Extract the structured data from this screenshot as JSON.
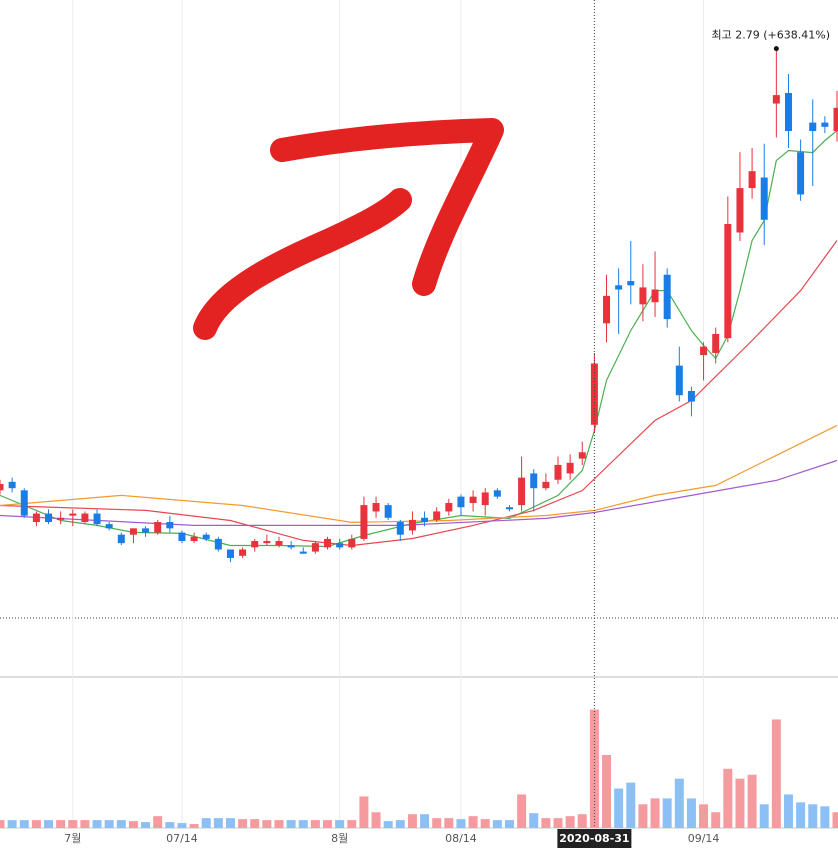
{
  "chart_data": {
    "type": "candlestick",
    "categories": [
      null,
      null,
      null,
      null,
      null,
      null,
      "7월",
      null,
      null,
      null,
      null,
      null,
      null,
      null,
      null,
      "07/14",
      null,
      null,
      null,
      null,
      null,
      null,
      null,
      null,
      null,
      null,
      null,
      null,
      "8월",
      null,
      null,
      null,
      null,
      null,
      null,
      null,
      null,
      null,
      "08/14",
      null,
      null,
      null,
      null,
      null,
      null,
      null,
      null,
      null,
      null,
      "2020-08-31",
      null,
      null,
      null,
      null,
      null,
      null,
      null,
      null,
      "09/14",
      null,
      null,
      null,
      null,
      null,
      null,
      null,
      null,
      null,
      null,
      null
    ],
    "open": [
      0.7,
      0.74,
      0.7,
      0.55,
      0.59,
      0.56,
      0.58,
      0.55,
      0.59,
      0.54,
      0.49,
      0.49,
      0.52,
      0.5,
      0.55,
      0.5,
      0.46,
      0.49,
      0.47,
      0.42,
      0.39,
      0.43,
      0.45,
      0.44,
      0.44,
      0.41,
      0.41,
      0.43,
      0.45,
      0.43,
      0.47,
      0.6,
      0.63,
      0.55,
      0.51,
      0.57,
      0.56,
      0.6,
      0.67,
      0.64,
      0.63,
      0.7,
      0.62,
      0.63,
      0.78,
      0.71,
      0.75,
      0.78,
      0.85,
      1.01,
      1.49,
      1.67,
      1.69,
      1.58,
      1.59,
      1.72,
      1.29,
      1.17,
      1.34,
      1.35,
      1.42,
      1.92,
      2.13,
      2.18,
      2.53,
      2.58,
      2.3,
      2.44,
      2.44,
      2.4
    ],
    "high": [
      0.75,
      0.76,
      0.71,
      0.6,
      0.61,
      0.6,
      0.61,
      0.6,
      0.61,
      0.55,
      0.5,
      0.52,
      0.53,
      0.56,
      0.58,
      0.51,
      0.5,
      0.5,
      0.48,
      0.42,
      0.43,
      0.47,
      0.49,
      0.48,
      0.46,
      0.43,
      0.46,
      0.48,
      0.47,
      0.49,
      0.67,
      0.67,
      0.64,
      0.56,
      0.6,
      0.6,
      0.62,
      0.66,
      0.68,
      0.7,
      0.71,
      0.71,
      0.63,
      0.86,
      0.8,
      0.78,
      0.86,
      0.87,
      0.93,
      1.35,
      1.72,
      1.75,
      1.88,
      1.77,
      1.83,
      1.75,
      1.38,
      1.19,
      1.4,
      1.47,
      2.09,
      2.3,
      2.32,
      2.34,
      2.79,
      2.67,
      2.36,
      2.55,
      2.47,
      2.59
    ],
    "low": [
      0.68,
      0.69,
      0.57,
      0.53,
      0.54,
      0.54,
      0.53,
      0.54,
      0.53,
      0.51,
      0.44,
      0.45,
      0.48,
      0.49,
      0.5,
      0.45,
      0.45,
      0.46,
      0.41,
      0.36,
      0.38,
      0.41,
      0.44,
      0.43,
      0.42,
      0.4,
      0.4,
      0.42,
      0.42,
      0.42,
      0.46,
      0.57,
      0.56,
      0.46,
      0.49,
      0.53,
      0.55,
      0.58,
      0.58,
      0.6,
      0.58,
      0.66,
      0.6,
      0.6,
      0.6,
      0.7,
      0.73,
      0.75,
      0.82,
      0.97,
      1.4,
      1.44,
      1.58,
      1.5,
      1.52,
      1.47,
      1.12,
      1.05,
      1.22,
      1.3,
      1.4,
      1.88,
      2.08,
      1.86,
      2.37,
      2.32,
      2.07,
      2.14,
      2.39,
      2.35
    ],
    "close": [
      0.73,
      0.71,
      0.58,
      0.59,
      0.55,
      0.57,
      0.59,
      0.59,
      0.54,
      0.52,
      0.45,
      0.52,
      0.5,
      0.55,
      0.52,
      0.46,
      0.48,
      0.47,
      0.42,
      0.38,
      0.42,
      0.46,
      0.46,
      0.46,
      0.43,
      0.4,
      0.45,
      0.47,
      0.43,
      0.47,
      0.63,
      0.64,
      0.57,
      0.49,
      0.56,
      0.55,
      0.6,
      0.64,
      0.62,
      0.67,
      0.69,
      0.67,
      0.61,
      0.76,
      0.71,
      0.74,
      0.82,
      0.83,
      0.88,
      1.3,
      1.62,
      1.65,
      1.67,
      1.66,
      1.65,
      1.51,
      1.15,
      1.12,
      1.38,
      1.44,
      1.96,
      2.13,
      2.21,
      1.98,
      2.57,
      2.4,
      2.1,
      2.4,
      2.42,
      2.51
    ],
    "ylim": [
      0.11,
      3.02
    ],
    "up_color": "#e8323c",
    "down_color": "#1a7de6",
    "overlays": [
      {
        "color": "#4caf50",
        "x": [
          0,
          2,
          5,
          8,
          11,
          15,
          19,
          23,
          27,
          30,
          34,
          38,
          42,
          46,
          48,
          49,
          50,
          52,
          54,
          55,
          57,
          58,
          59,
          60,
          61,
          62,
          63,
          64,
          65,
          67,
          68,
          69
        ],
        "values": [
          0.676,
          0.628,
          0.557,
          0.534,
          0.501,
          0.496,
          0.439,
          0.439,
          0.434,
          0.486,
          0.543,
          0.581,
          0.567,
          0.676,
          0.794,
          0.983,
          1.22,
          1.456,
          1.645,
          1.645,
          1.456,
          1.385,
          1.324,
          1.432,
          1.645,
          1.882,
          1.976,
          2.26,
          2.308,
          2.298,
          2.355,
          2.402
        ]
      },
      {
        "color": "#e8474f",
        "x": [
          0,
          12,
          19,
          25,
          29,
          34,
          39,
          44,
          48,
          54,
          57,
          62,
          66,
          69
        ],
        "values": [
          0.628,
          0.605,
          0.557,
          0.463,
          0.439,
          0.472,
          0.534,
          0.605,
          0.699,
          1.031,
          1.125,
          1.409,
          1.645,
          1.882
        ]
      },
      {
        "color": "#f39a2e",
        "x": [
          0,
          10,
          20,
          29,
          37,
          45,
          49,
          54,
          59,
          64,
          69
        ],
        "values": [
          0.628,
          0.676,
          0.628,
          0.548,
          0.557,
          0.581,
          0.605,
          0.676,
          0.723,
          0.865,
          1.007
        ]
      },
      {
        "color": "#a25ccf",
        "x": [
          0,
          16,
          33,
          45,
          49,
          57,
          64,
          69
        ],
        "values": [
          0.581,
          0.534,
          0.534,
          0.567,
          0.595,
          0.676,
          0.747,
          0.841
        ]
      }
    ],
    "volume": {
      "values": [
        8,
        8,
        8,
        8,
        8,
        8,
        8,
        8,
        8,
        8,
        8,
        7,
        6,
        12,
        6,
        5,
        4,
        10,
        10,
        10,
        9,
        9,
        8,
        8,
        8,
        8,
        8,
        8,
        8,
        8,
        32,
        16,
        7,
        8,
        14,
        14,
        10,
        10,
        9,
        12,
        9,
        8,
        8,
        34,
        15,
        10,
        10,
        12,
        14,
        120,
        74,
        40,
        46,
        24,
        30,
        30,
        50,
        30,
        24,
        16,
        60,
        50,
        54,
        24,
        110,
        34,
        26,
        24,
        22,
        16
      ],
      "ylim": [
        0,
        150
      ],
      "up_color": "#f59ba0",
      "down_color": "#8cc0f5"
    },
    "annotation": "최고 2.79 (+638.41%)",
    "crosshair": 49
  }
}
